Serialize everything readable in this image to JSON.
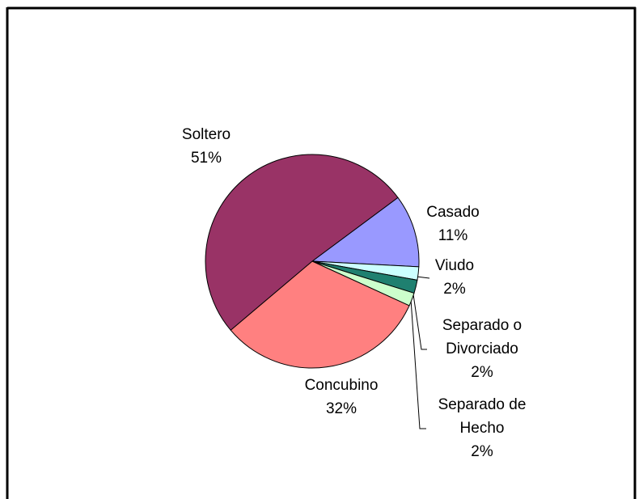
{
  "chart_data": {
    "type": "pie",
    "categories": [
      "Casado",
      "Viudo",
      "Separado o Divorciado",
      "Separado de Hecho",
      "Concubino",
      "Soltero"
    ],
    "values": [
      11,
      2,
      2,
      2,
      32,
      51
    ],
    "value_labels": [
      "11%",
      "2%",
      "2%",
      "2%",
      "32%",
      "51%"
    ],
    "colors": [
      "#9999ff",
      "#ccffff",
      "#1f8070",
      "#ccffcc",
      "#ff8080",
      "#993366"
    ]
  }
}
